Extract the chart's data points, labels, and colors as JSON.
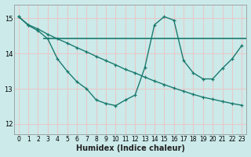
{
  "bg_color": "#cceaea",
  "grid_color": "#e8c8c8",
  "line_color": "#1a7a6e",
  "xlabel": "Humidex (Indice chaleur)",
  "xlim": [
    -0.5,
    23.5
  ],
  "ylim": [
    11.7,
    15.4
  ],
  "yticks": [
    12,
    13,
    14,
    15
  ],
  "xticks": [
    0,
    1,
    2,
    3,
    4,
    5,
    6,
    7,
    8,
    9,
    10,
    11,
    12,
    13,
    14,
    15,
    16,
    17,
    18,
    19,
    20,
    21,
    22,
    23
  ],
  "series1_x": [
    0,
    1,
    2,
    3,
    4,
    5,
    6,
    7,
    8,
    9,
    10,
    11,
    12,
    13,
    14,
    15,
    16,
    17,
    18,
    19,
    20,
    21,
    22,
    23
  ],
  "series1_y": [
    15.05,
    14.82,
    14.7,
    14.55,
    14.42,
    14.3,
    14.17,
    14.05,
    13.92,
    13.8,
    13.68,
    13.55,
    13.45,
    13.33,
    13.22,
    13.12,
    13.02,
    12.93,
    12.84,
    12.76,
    12.7,
    12.64,
    12.58,
    12.53
  ],
  "series2_x": [
    0,
    1,
    2,
    3,
    4,
    5,
    6,
    7,
    8,
    9,
    10,
    11,
    12,
    13,
    14,
    15,
    16,
    17,
    18,
    19,
    20,
    21,
    22,
    23
  ],
  "series2_y": [
    15.05,
    14.8,
    14.65,
    14.42,
    13.85,
    13.5,
    13.2,
    13.0,
    12.68,
    12.58,
    12.52,
    12.68,
    12.82,
    13.6,
    14.82,
    15.05,
    14.95,
    13.8,
    13.45,
    13.28,
    13.28,
    13.58,
    13.85,
    14.23
  ],
  "hline_y": 14.42,
  "hline_x_start": 2.5,
  "hline_x_end": 23.5
}
